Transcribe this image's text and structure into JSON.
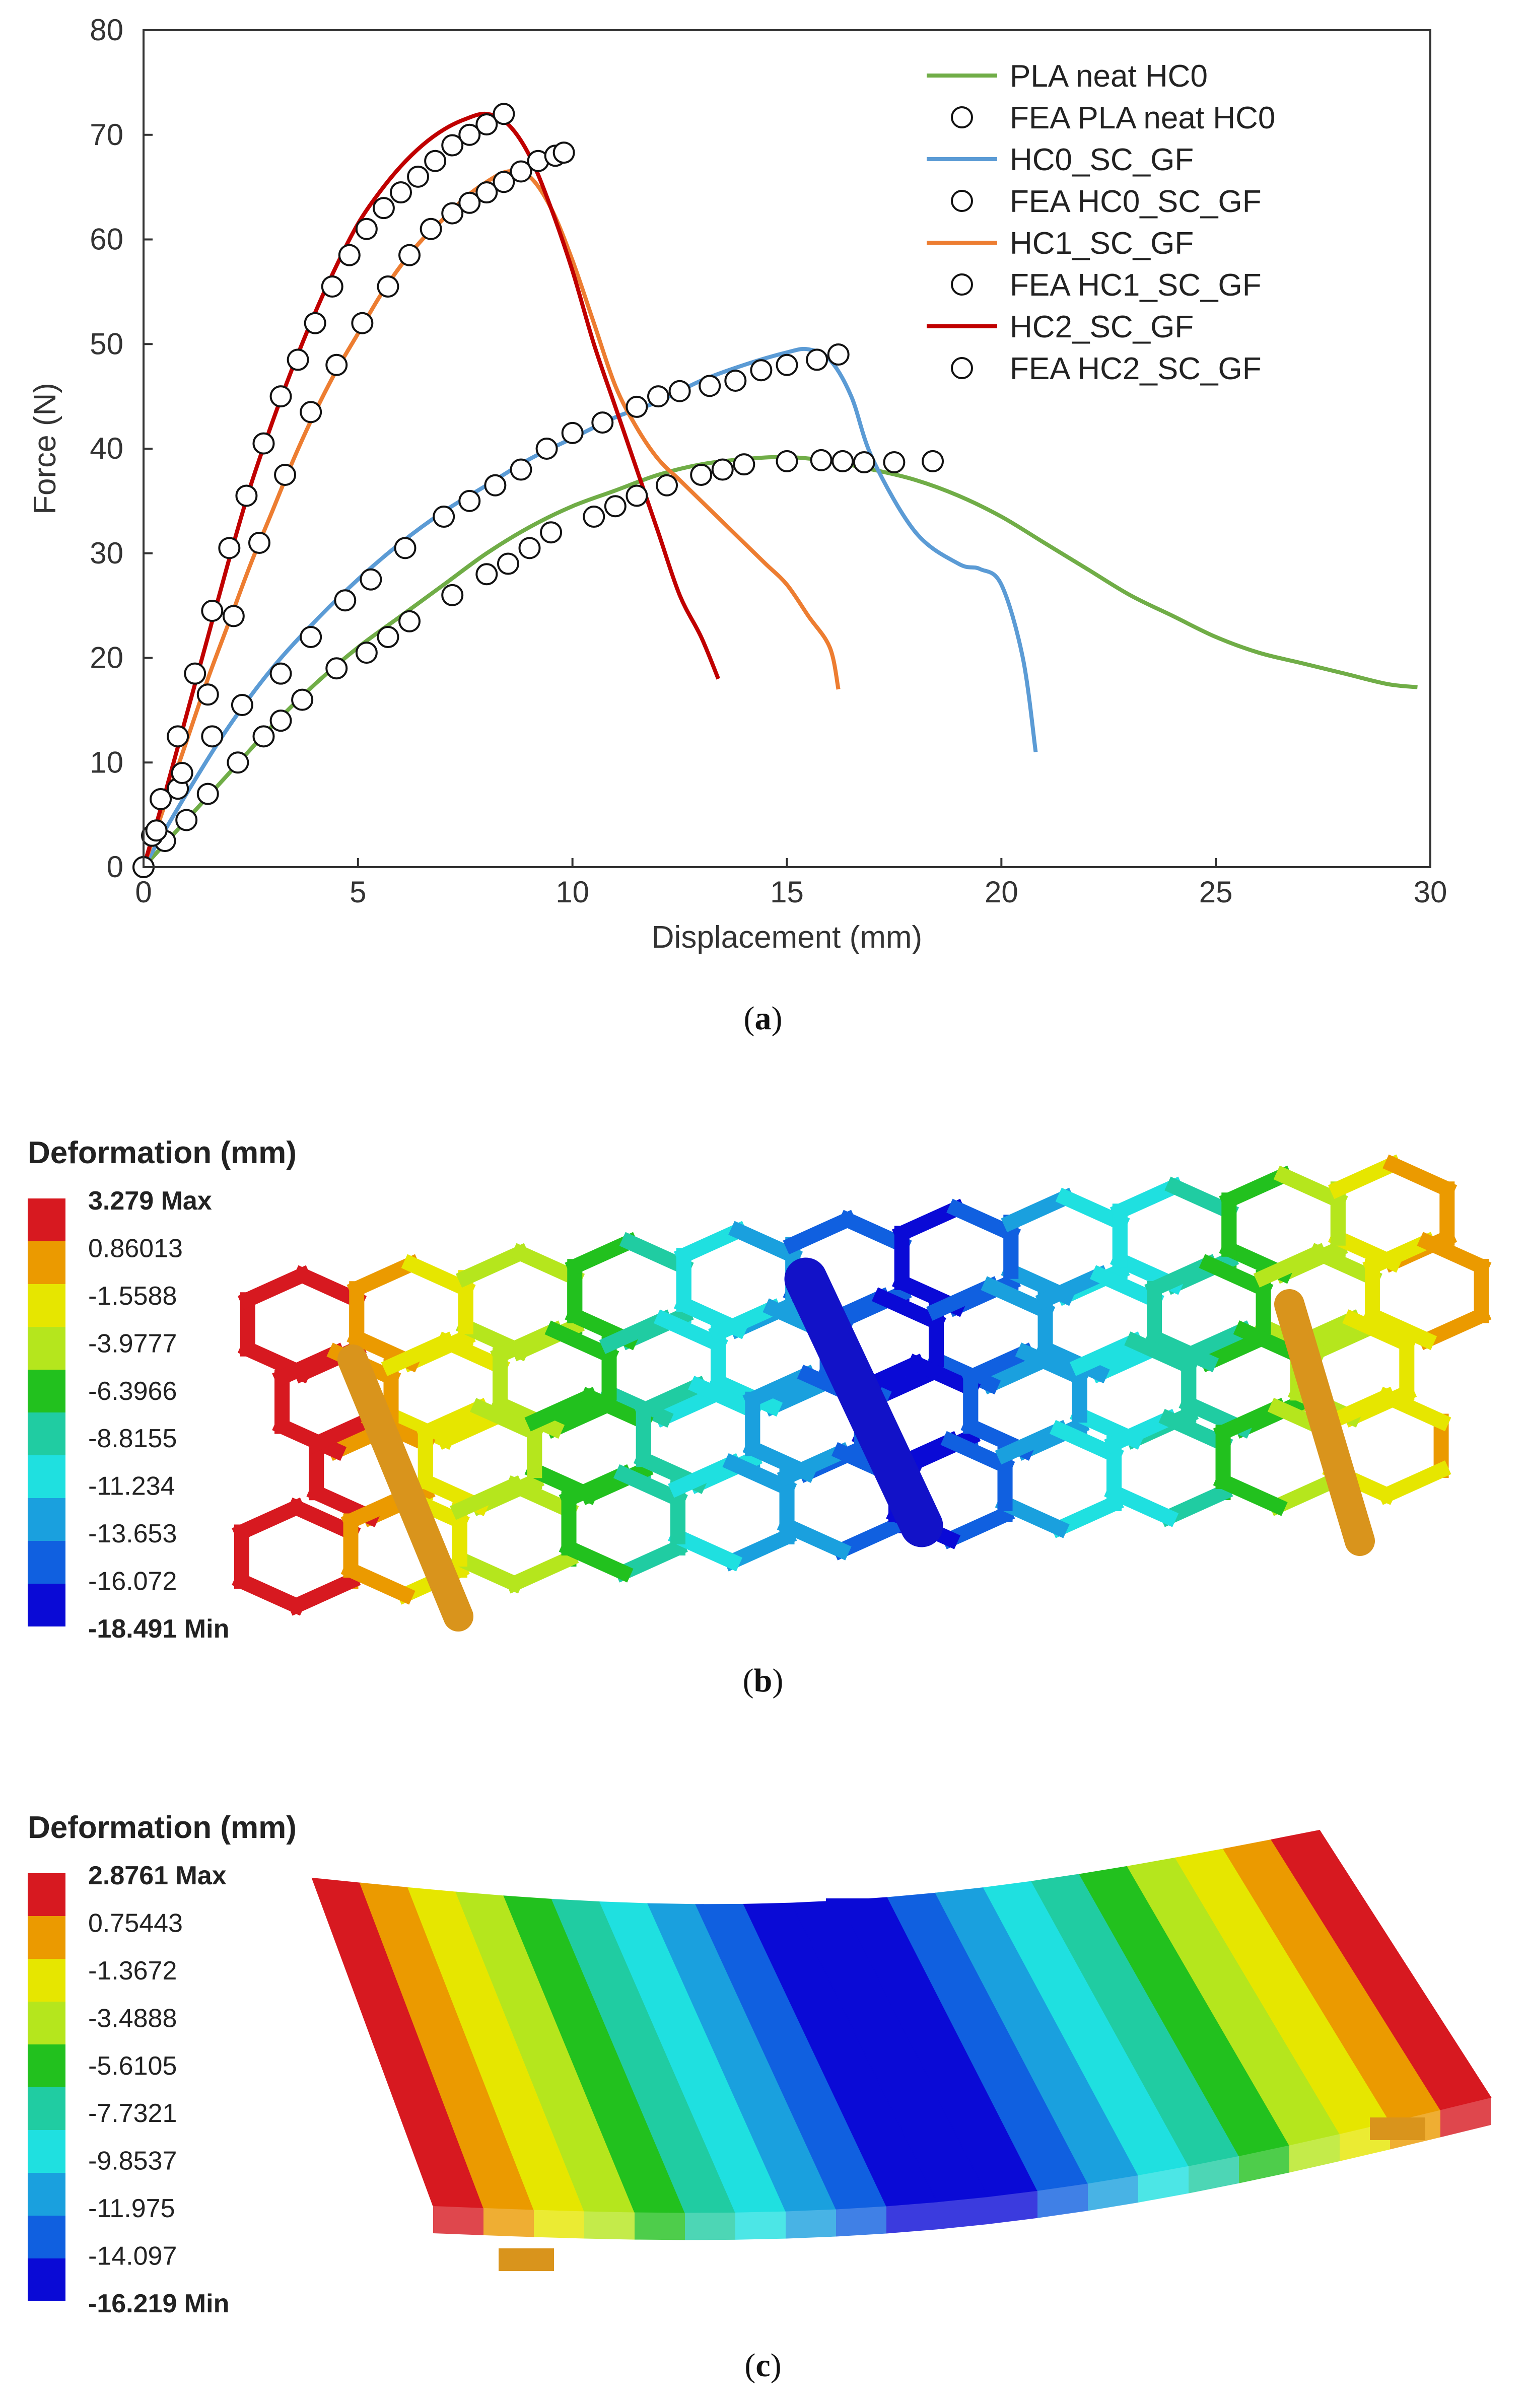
{
  "chart_data": {
    "type": "line",
    "xlabel": "Displacement (mm)",
    "ylabel": "Force (N)",
    "xlim": [
      0,
      30
    ],
    "ylim": [
      0,
      80
    ],
    "xticks": [
      0,
      5,
      10,
      15,
      20,
      25,
      30
    ],
    "yticks": [
      0,
      10,
      20,
      30,
      40,
      50,
      60,
      70,
      80
    ],
    "grid": false,
    "legend_position": "top-right",
    "series": [
      {
        "name": "PLA neat HC0",
        "kind": "line",
        "color": "#70ad47",
        "x": [
          0,
          1,
          2,
          3,
          4,
          5,
          6,
          7,
          8,
          9,
          10,
          11,
          12,
          13,
          14,
          15,
          16,
          17,
          18,
          19,
          20,
          21,
          22,
          23,
          24,
          25,
          26,
          27,
          28,
          29,
          29.7
        ],
        "y": [
          0,
          4.5,
          9,
          13.5,
          17.5,
          21,
          24,
          27,
          30,
          32.5,
          34.5,
          36,
          37.5,
          38.5,
          39,
          39.2,
          38.8,
          38,
          37,
          35.5,
          33.5,
          31,
          28.5,
          26,
          24,
          22,
          20.5,
          19.5,
          18.5,
          17.5,
          17.2
        ]
      },
      {
        "name": "FEA PLA neat HC0",
        "kind": "markers",
        "x": [
          0,
          0.5,
          1,
          1.5,
          2.2,
          2.8,
          3.2,
          3.7,
          4.5,
          5.2,
          5.7,
          6.2,
          7.2,
          8,
          8.5,
          9,
          9.5,
          10.5,
          11,
          11.5,
          12.2,
          13,
          13.5,
          14,
          15,
          15.8,
          16.3,
          16.8,
          17.5,
          18.4
        ],
        "y": [
          0,
          2.5,
          4.5,
          7,
          10,
          12.5,
          14,
          16,
          19,
          20.5,
          22,
          23.5,
          26,
          28,
          29,
          30.5,
          32,
          33.5,
          34.5,
          35.5,
          36.5,
          37.5,
          38,
          38.5,
          38.8,
          38.9,
          38.8,
          38.7,
          38.7,
          38.8
        ]
      },
      {
        "name": "HC0_SC_GF",
        "kind": "line",
        "color": "#5b9bd5",
        "x": [
          0,
          1,
          2,
          3,
          4,
          5,
          6,
          7,
          8,
          9,
          10,
          11,
          12,
          13,
          14,
          15,
          15.5,
          16,
          16.5,
          17,
          18,
          19,
          19.5,
          20,
          20.5,
          20.8
        ],
        "y": [
          0,
          7,
          13.5,
          19,
          23.5,
          27.5,
          31,
          34,
          36.5,
          39,
          41,
          43,
          44.5,
          46.5,
          48,
          49.2,
          49.5,
          48.5,
          45,
          39,
          32,
          29,
          28.5,
          27,
          20,
          11
        ]
      },
      {
        "name": "FEA HC0_SC_GF",
        "kind": "markers",
        "x": [
          0.2,
          0.8,
          1.6,
          2.3,
          3.2,
          3.9,
          4.7,
          5.3,
          6.1,
          7,
          7.6,
          8.2,
          8.8,
          9.4,
          10,
          10.7,
          11.5,
          12,
          12.5,
          13.2,
          13.8,
          14.4,
          15,
          15.7,
          16.2
        ],
        "y": [
          3,
          7.5,
          12.5,
          15.5,
          18.5,
          22,
          25.5,
          27.5,
          30.5,
          33.5,
          35,
          36.5,
          38,
          40,
          41.5,
          42.5,
          44,
          45,
          45.5,
          46,
          46.5,
          47.5,
          48,
          48.5,
          49
        ]
      },
      {
        "name": "HC1_SC_GF",
        "kind": "line",
        "color": "#ed7d31",
        "x": [
          0,
          0.5,
          1,
          1.5,
          2,
          2.5,
          3,
          3.5,
          4,
          4.5,
          5,
          5.5,
          6,
          6.5,
          7,
          7.5,
          8,
          8.5,
          9,
          9.5,
          10,
          10.5,
          11,
          11.5,
          12,
          12.5,
          13,
          13.5,
          14,
          14.5,
          15,
          15.5,
          16,
          16.2
        ],
        "y": [
          0,
          6,
          12,
          18,
          23.5,
          29,
          34,
          39,
          43.5,
          47.5,
          51,
          54.5,
          57.5,
          60,
          62,
          64,
          65.5,
          66.5,
          66,
          63,
          58,
          52,
          46,
          42,
          39,
          37,
          35,
          33,
          31,
          29,
          27,
          24,
          21,
          17
        ]
      },
      {
        "name": "FEA HC1_SC_GF",
        "kind": "markers",
        "x": [
          0.3,
          0.9,
          1.5,
          2.1,
          2.7,
          3.3,
          3.9,
          4.5,
          5.1,
          5.7,
          6.2,
          6.7,
          7.2,
          7.6,
          8,
          8.4,
          8.8,
          9.2,
          9.6,
          9.8
        ],
        "y": [
          3.5,
          9,
          16.5,
          24,
          31,
          37.5,
          43.5,
          48,
          52,
          55.5,
          58.5,
          61,
          62.5,
          63.5,
          64.5,
          65.5,
          66.5,
          67.5,
          68,
          68.3
        ]
      },
      {
        "name": "HC2_SC_GF",
        "kind": "line",
        "color": "#c00000",
        "x": [
          0,
          0.5,
          1,
          1.5,
          2,
          2.5,
          3,
          3.5,
          4,
          4.5,
          5,
          5.5,
          6,
          6.5,
          7,
          7.5,
          8,
          8.5,
          9,
          9.5,
          10,
          10.5,
          11,
          11.5,
          12,
          12.5,
          13,
          13.4
        ],
        "y": [
          0,
          7,
          14.5,
          22,
          29.5,
          36.5,
          42.5,
          48,
          53,
          57.5,
          61.5,
          64.5,
          67,
          69,
          70.5,
          71.5,
          72,
          71,
          68,
          63,
          57,
          50,
          44,
          38,
          32,
          26,
          22,
          18
        ]
      },
      {
        "name": "FEA HC2_SC_GF",
        "kind": "markers",
        "x": [
          0,
          0.4,
          0.8,
          1.2,
          1.6,
          2,
          2.4,
          2.8,
          3.2,
          3.6,
          4,
          4.4,
          4.8,
          5.2,
          5.6,
          6,
          6.4,
          6.8,
          7.2,
          7.6,
          8,
          8.4
        ],
        "y": [
          0,
          6.5,
          12.5,
          18.5,
          24.5,
          30.5,
          35.5,
          40.5,
          45,
          48.5,
          52,
          55.5,
          58.5,
          61,
          63,
          64.5,
          66,
          67.5,
          69,
          70,
          71,
          72
        ]
      }
    ]
  },
  "captions": {
    "a": "a",
    "b": "b",
    "c": "c"
  },
  "panel_b": {
    "title": "Deformation (mm)",
    "legend": [
      "3.279 Max",
      "0.86013",
      "-1.5588",
      "-3.9777",
      "-6.3966",
      "-8.8155",
      "-11.234",
      "-13.653",
      "-16.072",
      "-18.491 Min"
    ],
    "colors": [
      "#d71920",
      "#eb9a00",
      "#e6e600",
      "#b5e61d",
      "#22c11e",
      "#20cca2",
      "#1fe0e0",
      "#1aa0de",
      "#1060e0",
      "#0a0ad6"
    ]
  },
  "panel_c": {
    "title": "Deformation (mm)",
    "legend": [
      "2.8761 Max",
      "0.75443",
      "-1.3672",
      "-3.4888",
      "-5.6105",
      "-7.7321",
      "-9.8537",
      "-11.975",
      "-14.097",
      "-16.219 Min"
    ],
    "colors": [
      "#d71920",
      "#eb9a00",
      "#e6e600",
      "#b5e61d",
      "#22c11e",
      "#20cca2",
      "#1fe0e0",
      "#1aa0de",
      "#1060e0",
      "#0a0ad6"
    ]
  }
}
